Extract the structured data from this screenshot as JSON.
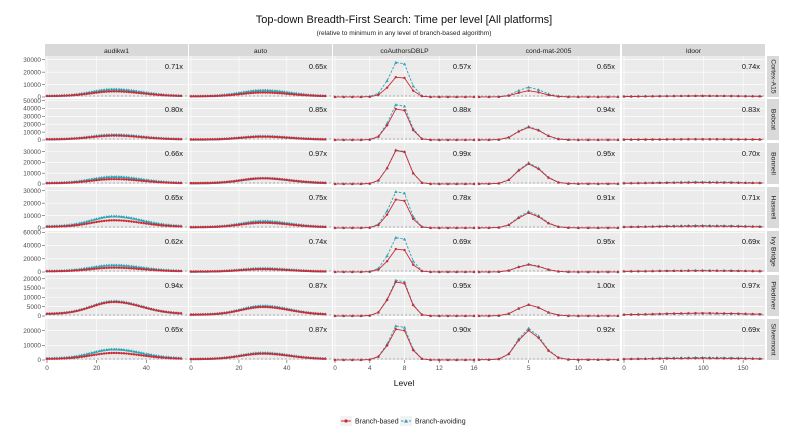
{
  "chart_data": {
    "type": "line",
    "title": "Top-down Breadth-First Search: Time per level [All platforms]",
    "subtitle": "(relative to minimum in any level of branch-based algorithm)",
    "xlabel": "Level",
    "ylabel": "",
    "legend_position": "bottom",
    "grid": true,
    "colors": {
      "Branch-based": "#cc2a36",
      "Branch-avoiding": "#2fa3b3",
      "panel_bg": "#ebebeb",
      "strip_bg": "#d9d9d9"
    },
    "legend": [
      "Branch-based",
      "Branch-avoiding"
    ],
    "columns": [
      "audikw1",
      "auto",
      "coAuthorsDBLP",
      "cond-mat-2005",
      "ldoor"
    ],
    "rows": [
      "Cortex-A15",
      "Bobcat",
      "Bonnell",
      "Haswell",
      "Ivy Bridge",
      "Piledriver",
      "Silvermont"
    ],
    "x_axes": [
      {
        "column": "audikw1",
        "xlim": [
          0,
          56
        ],
        "ticks": [
          0,
          20,
          40
        ],
        "n_levels": 55
      },
      {
        "column": "auto",
        "xlim": [
          0,
          58
        ],
        "ticks": [
          0,
          20,
          40
        ],
        "n_levels": 57
      },
      {
        "column": "coAuthorsDBLP",
        "xlim": [
          0,
          16
        ],
        "ticks": [
          0,
          4,
          8,
          12,
          16
        ],
        "n_levels": 17
      },
      {
        "column": "cond-mat-2005",
        "xlim": [
          0,
          14
        ],
        "ticks": [
          5,
          10
        ],
        "n_levels": 15
      },
      {
        "column": "ldoor",
        "xlim": [
          0,
          175
        ],
        "ticks": [
          0,
          50,
          100,
          150
        ],
        "n_levels": 175
      }
    ],
    "y_axes": [
      {
        "row": "Cortex-A15",
        "ylim": [
          0,
          33000
        ],
        "ticks": [
          0,
          10000,
          20000,
          30000
        ]
      },
      {
        "row": "Bobcat",
        "ylim": [
          0,
          52000
        ],
        "ticks": [
          0,
          10000,
          20000,
          30000,
          40000,
          50000
        ]
      },
      {
        "row": "Bonnell",
        "ylim": [
          0,
          38000
        ],
        "ticks": [
          0,
          10000,
          20000,
          30000
        ]
      },
      {
        "row": "Haswell",
        "ylim": [
          0,
          33000
        ],
        "ticks": [
          0,
          10000,
          20000,
          30000
        ]
      },
      {
        "row": "Ivy Bridge",
        "ylim": [
          0,
          62000
        ],
        "ticks": [
          0,
          20000,
          40000,
          60000
        ]
      },
      {
        "row": "Piledriver",
        "ylim": [
          0,
          22000
        ],
        "ticks": [
          0,
          5000,
          10000,
          15000,
          20000
        ]
      },
      {
        "row": "Silvermont",
        "ylim": [
          0,
          28000
        ],
        "ticks": [
          0,
          10000,
          20000
        ]
      }
    ],
    "panels": [
      {
        "row": "Cortex-A15",
        "column": "audikw1",
        "ratio": "0.71x",
        "peak_level": 27,
        "peak": {
          "Branch-based": 4500,
          "Branch-avoiding": 6300
        }
      },
      {
        "row": "Cortex-A15",
        "column": "auto",
        "ratio": "0.65x",
        "peak_level": 30,
        "peak": {
          "Branch-based": 3600,
          "Branch-avoiding": 5500
        }
      },
      {
        "row": "Cortex-A15",
        "column": "coAuthorsDBLP",
        "ratio": "0.57x",
        "peak_level": 7.5,
        "peak": {
          "Branch-based": 17500,
          "Branch-avoiding": 30500
        }
      },
      {
        "row": "Cortex-A15",
        "column": "cond-mat-2005",
        "ratio": "0.65x",
        "peak_level": 5,
        "peak": {
          "Branch-based": 5000,
          "Branch-avoiding": 7800
        }
      },
      {
        "row": "Cortex-A15",
        "column": "ldoor",
        "ratio": "0.74x",
        "peak_level": 100,
        "peak": {
          "Branch-based": 800,
          "Branch-avoiding": 1100
        }
      },
      {
        "row": "Bobcat",
        "column": "audikw1",
        "ratio": "0.80x",
        "peak_level": 27,
        "peak": {
          "Branch-based": 5500,
          "Branch-avoiding": 6900
        }
      },
      {
        "row": "Bobcat",
        "column": "auto",
        "ratio": "0.85x",
        "peak_level": 30,
        "peak": {
          "Branch-based": 4200,
          "Branch-avoiding": 5000
        }
      },
      {
        "row": "Bobcat",
        "column": "coAuthorsDBLP",
        "ratio": "0.88x",
        "peak_level": 7.5,
        "peak": {
          "Branch-based": 43000,
          "Branch-avoiding": 49000
        }
      },
      {
        "row": "Bobcat",
        "column": "cond-mat-2005",
        "ratio": "0.94x",
        "peak_level": 5,
        "peak": {
          "Branch-based": 16000,
          "Branch-avoiding": 17000
        }
      },
      {
        "row": "Bobcat",
        "column": "ldoor",
        "ratio": "0.83x",
        "peak_level": 100,
        "peak": {
          "Branch-based": 1000,
          "Branch-avoiding": 1200
        }
      },
      {
        "row": "Bonnell",
        "column": "audikw1",
        "ratio": "0.66x",
        "peak_level": 27,
        "peak": {
          "Branch-based": 4500,
          "Branch-avoiding": 6800
        }
      },
      {
        "row": "Bonnell",
        "column": "auto",
        "ratio": "0.97x",
        "peak_level": 30,
        "peak": {
          "Branch-based": 5300,
          "Branch-avoiding": 5500
        }
      },
      {
        "row": "Bonnell",
        "column": "coAuthorsDBLP",
        "ratio": "0.99x",
        "peak_level": 7.5,
        "peak": {
          "Branch-based": 34000,
          "Branch-avoiding": 34500
        }
      },
      {
        "row": "Bonnell",
        "column": "cond-mat-2005",
        "ratio": "0.95x",
        "peak_level": 5,
        "peak": {
          "Branch-based": 18500,
          "Branch-avoiding": 19500
        }
      },
      {
        "row": "Bonnell",
        "column": "ldoor",
        "ratio": "0.70x",
        "peak_level": 100,
        "peak": {
          "Branch-based": 1300,
          "Branch-avoiding": 1900
        }
      },
      {
        "row": "Haswell",
        "column": "audikw1",
        "ratio": "0.65x",
        "peak_level": 27,
        "peak": {
          "Branch-based": 6200,
          "Branch-avoiding": 9500
        }
      },
      {
        "row": "Haswell",
        "column": "auto",
        "ratio": "0.75x",
        "peak_level": 30,
        "peak": {
          "Branch-based": 4200,
          "Branch-avoiding": 5600
        }
      },
      {
        "row": "Haswell",
        "column": "coAuthorsDBLP",
        "ratio": "0.78x",
        "peak_level": 7.5,
        "peak": {
          "Branch-based": 25000,
          "Branch-avoiding": 32000
        }
      },
      {
        "row": "Haswell",
        "column": "cond-mat-2005",
        "ratio": "0.91x",
        "peak_level": 5,
        "peak": {
          "Branch-based": 12000,
          "Branch-avoiding": 13200
        }
      },
      {
        "row": "Haswell",
        "column": "ldoor",
        "ratio": "0.71x",
        "peak_level": 100,
        "peak": {
          "Branch-based": 1500,
          "Branch-avoiding": 2100
        }
      },
      {
        "row": "Ivy Bridge",
        "column": "audikw1",
        "ratio": "0.62x",
        "peak_level": 27,
        "peak": {
          "Branch-based": 6500,
          "Branch-avoiding": 10500
        }
      },
      {
        "row": "Ivy Bridge",
        "column": "auto",
        "ratio": "0.74x",
        "peak_level": 30,
        "peak": {
          "Branch-based": 4200,
          "Branch-avoiding": 5700
        }
      },
      {
        "row": "Ivy Bridge",
        "column": "coAuthorsDBLP",
        "ratio": "0.69x",
        "peak_level": 7.5,
        "peak": {
          "Branch-based": 38000,
          "Branch-avoiding": 57000
        }
      },
      {
        "row": "Ivy Bridge",
        "column": "cond-mat-2005",
        "ratio": "0.95x",
        "peak_level": 5,
        "peak": {
          "Branch-based": 11000,
          "Branch-avoiding": 11800
        }
      },
      {
        "row": "Ivy Bridge",
        "column": "ldoor",
        "ratio": "0.69x",
        "peak_level": 100,
        "peak": {
          "Branch-based": 1800,
          "Branch-avoiding": 2600
        }
      },
      {
        "row": "Piledriver",
        "column": "audikw1",
        "ratio": "0.94x",
        "peak_level": 27,
        "peak": {
          "Branch-based": 7500,
          "Branch-avoiding": 8000
        }
      },
      {
        "row": "Piledriver",
        "column": "auto",
        "ratio": "0.87x",
        "peak_level": 30,
        "peak": {
          "Branch-based": 4800,
          "Branch-avoiding": 5500
        }
      },
      {
        "row": "Piledriver",
        "column": "coAuthorsDBLP",
        "ratio": "0.95x",
        "peak_level": 7.5,
        "peak": {
          "Branch-based": 20000,
          "Branch-avoiding": 21000
        }
      },
      {
        "row": "Piledriver",
        "column": "cond-mat-2005",
        "ratio": "1.00x",
        "peak_level": 5,
        "peak": {
          "Branch-based": 6000,
          "Branch-avoiding": 6000
        }
      },
      {
        "row": "Piledriver",
        "column": "ldoor",
        "ratio": "0.97x",
        "peak_level": 100,
        "peak": {
          "Branch-based": 1500,
          "Branch-avoiding": 1550
        }
      },
      {
        "row": "Silvermont",
        "column": "audikw1",
        "ratio": "0.65x",
        "peak_level": 27,
        "peak": {
          "Branch-based": 4800,
          "Branch-avoiding": 7400
        }
      },
      {
        "row": "Silvermont",
        "column": "auto",
        "ratio": "0.87x",
        "peak_level": 30,
        "peak": {
          "Branch-based": 4300,
          "Branch-avoiding": 5000
        }
      },
      {
        "row": "Silvermont",
        "column": "coAuthorsDBLP",
        "ratio": "0.90x",
        "peak_level": 7.5,
        "peak": {
          "Branch-based": 23000,
          "Branch-avoiding": 25500
        }
      },
      {
        "row": "Silvermont",
        "column": "cond-mat-2005",
        "ratio": "0.92x",
        "peak_level": 5,
        "peak": {
          "Branch-based": 20000,
          "Branch-avoiding": 21500
        }
      },
      {
        "row": "Silvermont",
        "column": "ldoor",
        "ratio": "0.69x",
        "peak_level": 100,
        "peak": {
          "Branch-based": 1200,
          "Branch-avoiding": 1700
        }
      }
    ]
  }
}
